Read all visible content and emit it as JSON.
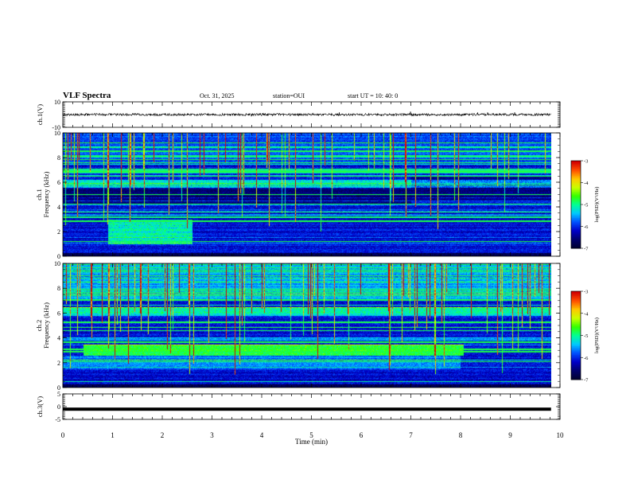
{
  "header": {
    "title": "VLF Spectra",
    "date": "Oct. 31, 2025",
    "station": "station=OUI",
    "start_ut": "start UT =  10: 40: 0"
  },
  "chart_data": [
    {
      "type": "line",
      "name": "ch1-voltage",
      "ylabel": "ch.1(V)",
      "ylim": [
        -10,
        10
      ],
      "yticks": [
        "10",
        "-10"
      ],
      "trace_level": 0,
      "color": "#000000"
    },
    {
      "type": "heatmap",
      "name": "ch1-spectrogram",
      "ylabel": "ch.1\nFrequency (kHz)",
      "ylim": [
        0,
        10
      ],
      "yticks": [
        "0",
        "2",
        "4",
        "6",
        "8",
        "10"
      ],
      "features": {
        "persistent_hiss_band_khz": [
          5.6,
          6.2
        ],
        "diffuse_emission_khz": [
          1.0,
          3.0
        ],
        "diffuse_emission_time_min": [
          0.9,
          2.6
        ],
        "dark_band_khz": [
          4.3,
          5.5
        ]
      },
      "colorbar": {
        "label": "log(PSD)(V²/Hz)",
        "ticks": [
          "-3",
          "-4",
          "-5",
          "-6",
          "-7"
        ],
        "range": [
          -7,
          -3
        ]
      }
    },
    {
      "type": "heatmap",
      "name": "ch2-spectrogram",
      "ylabel": "ch.2\nFrequency (kHz)",
      "ylim": [
        0,
        10
      ],
      "yticks": [
        "0",
        "2",
        "4",
        "6",
        "8",
        "10"
      ],
      "features": {
        "persistent_hiss_band_khz": [
          5.8,
          6.5
        ],
        "enhanced_band_khz": [
          2.6,
          3.5
        ],
        "enhanced_band_time_min": [
          0.4,
          8.05
        ]
      },
      "colorbar": {
        "label": "log(PSD)(V²/Hz)",
        "ticks": [
          "-3",
          "-4",
          "-5",
          "-6",
          "-7"
        ],
        "range": [
          -7,
          -3
        ]
      }
    },
    {
      "type": "line",
      "name": "ch3-voltage",
      "ylabel": "ch.3(V)",
      "ylim": [
        -5,
        5
      ],
      "yticks": [
        "5",
        "0",
        "-5"
      ],
      "trace_level": -1,
      "color": "#000000"
    }
  ],
  "xaxis": {
    "label": "Time (min)",
    "xlim": [
      0,
      10
    ],
    "ticks": [
      "0",
      "1",
      "2",
      "3",
      "4",
      "5",
      "6",
      "7",
      "8",
      "9",
      "10"
    ],
    "data_end": 9.82
  },
  "colors": {
    "colormap": [
      "#000032",
      "#00006e",
      "#0000c8",
      "#0050ff",
      "#00c8ff",
      "#00ff96",
      "#32ff00",
      "#c8ff00",
      "#ffc800",
      "#ff5000",
      "#d20000",
      "#ffffff"
    ]
  }
}
